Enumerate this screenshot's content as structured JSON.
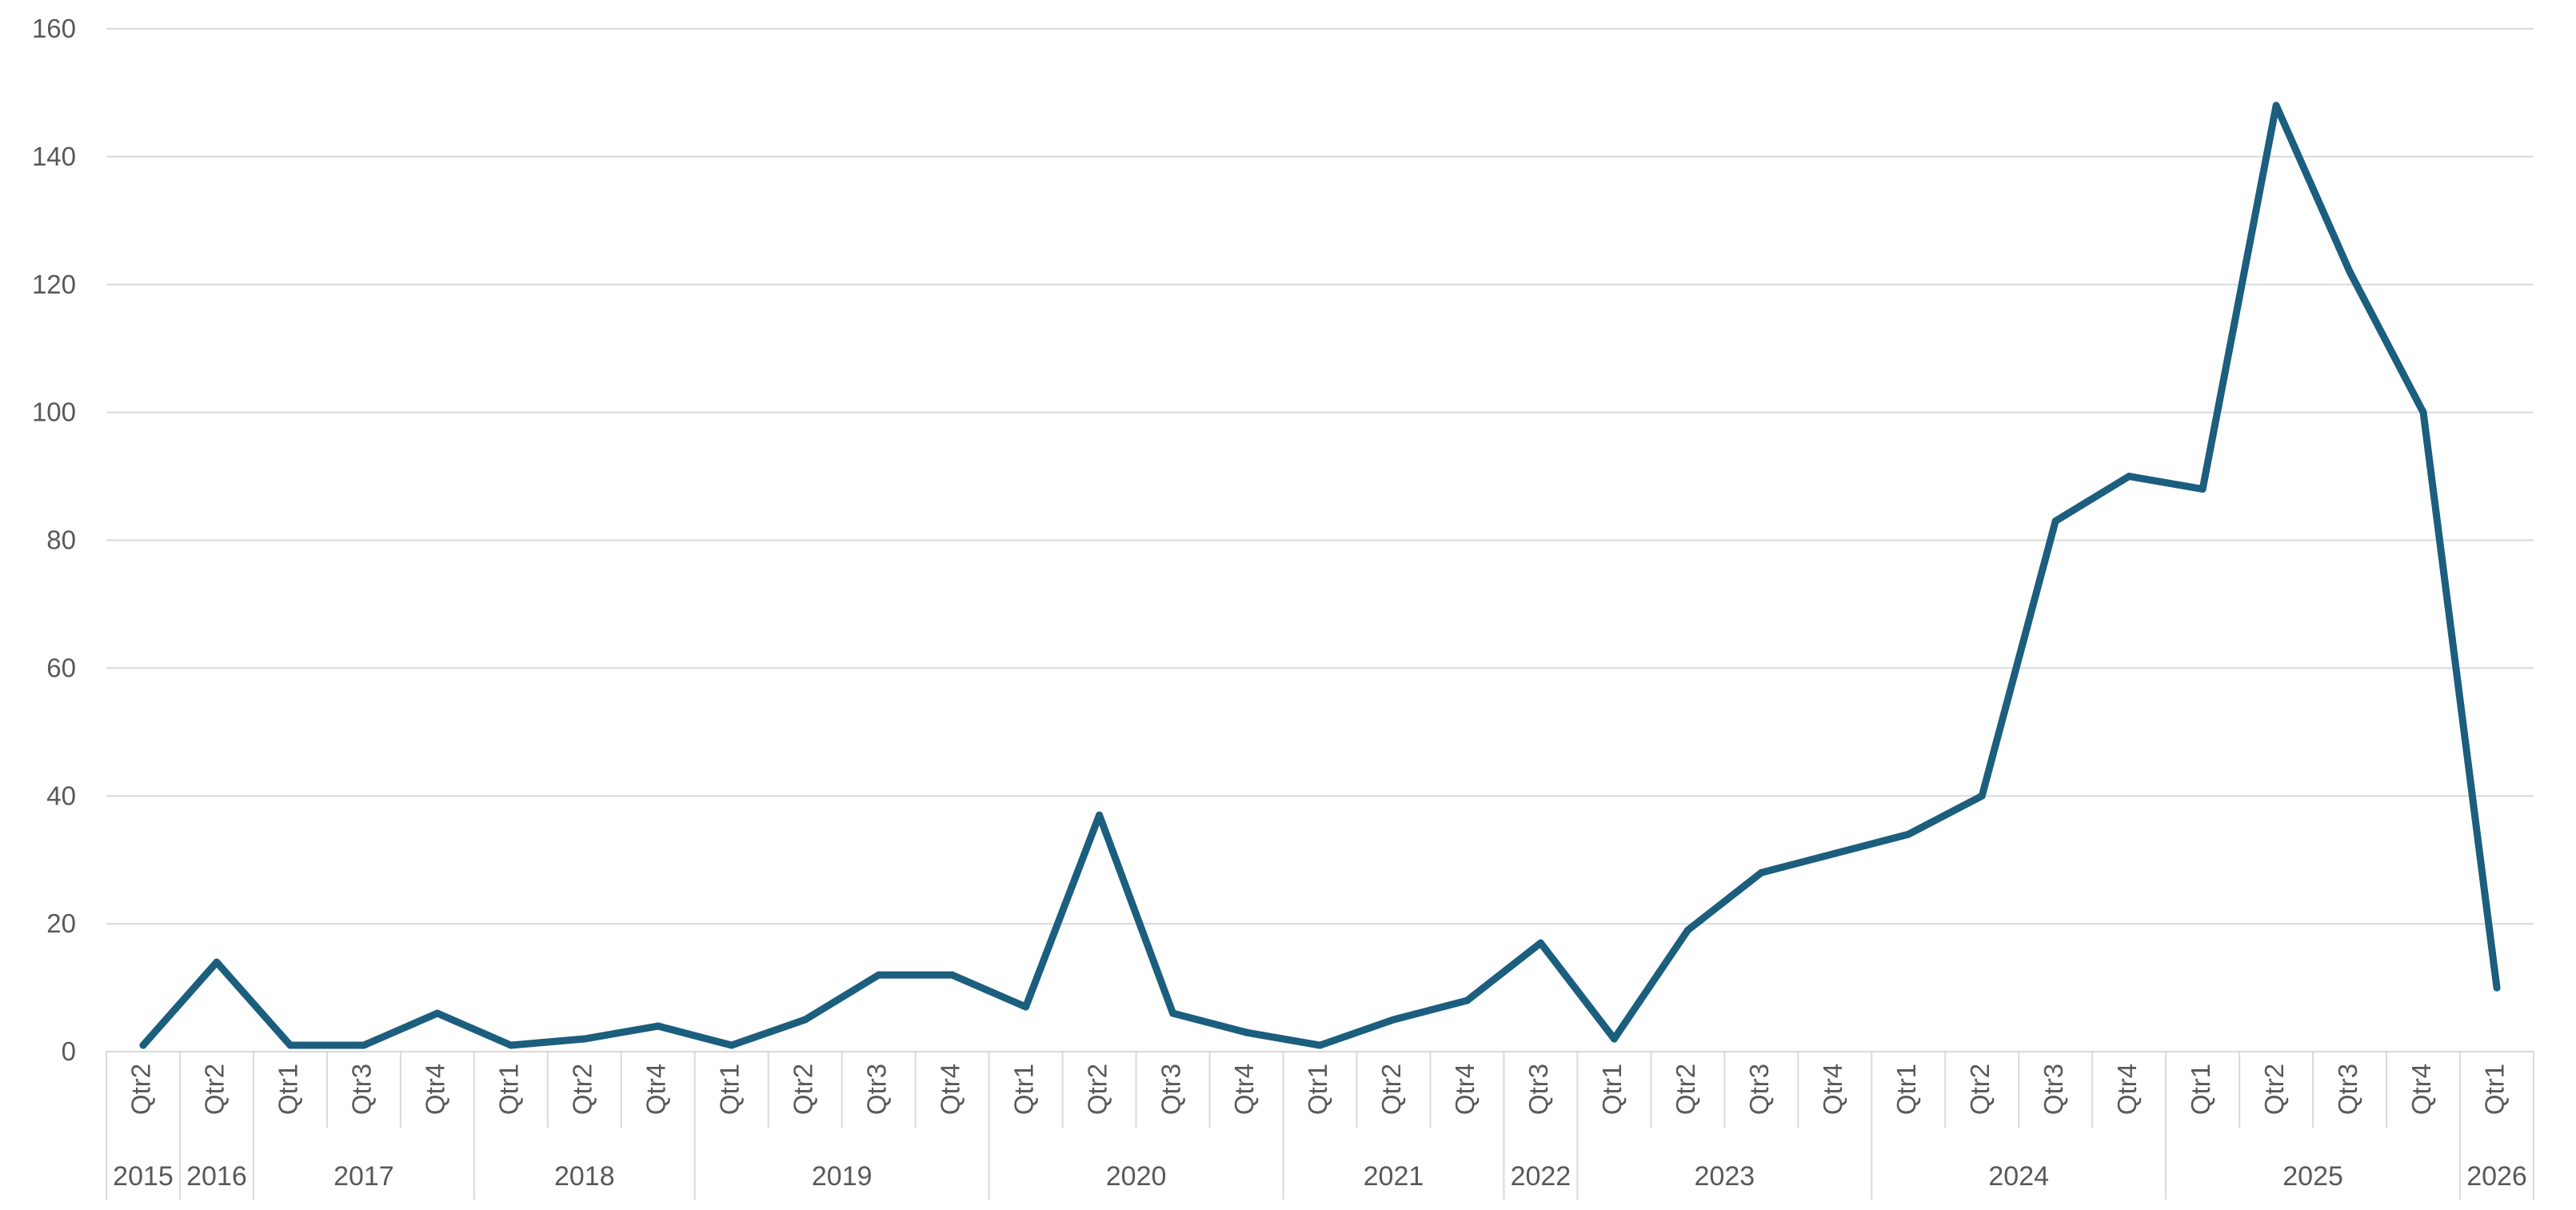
{
  "chart_data": {
    "type": "line",
    "title": "",
    "xlabel": "",
    "ylabel": "",
    "ylim": [
      0,
      160
    ],
    "yticks": [
      0,
      20,
      40,
      60,
      80,
      100,
      120,
      140,
      160
    ],
    "grid": true,
    "legend": "none",
    "colors": {
      "line": "#1B5E7E",
      "grid": "#D9D9D9",
      "text": "#595959",
      "axis": "#D9D9D9"
    },
    "categories": [
      {
        "year": "2015",
        "quarter": "Qtr2"
      },
      {
        "year": "2016",
        "quarter": "Qtr2"
      },
      {
        "year": "2017",
        "quarter": "Qtr1"
      },
      {
        "year": "2017",
        "quarter": "Qtr3"
      },
      {
        "year": "2017",
        "quarter": "Qtr4"
      },
      {
        "year": "2018",
        "quarter": "Qtr1"
      },
      {
        "year": "2018",
        "quarter": "Qtr2"
      },
      {
        "year": "2018",
        "quarter": "Qtr4"
      },
      {
        "year": "2019",
        "quarter": "Qtr1"
      },
      {
        "year": "2019",
        "quarter": "Qtr2"
      },
      {
        "year": "2019",
        "quarter": "Qtr3"
      },
      {
        "year": "2019",
        "quarter": "Qtr4"
      },
      {
        "year": "2020",
        "quarter": "Qtr1"
      },
      {
        "year": "2020",
        "quarter": "Qtr2"
      },
      {
        "year": "2020",
        "quarter": "Qtr3"
      },
      {
        "year": "2020",
        "quarter": "Qtr4"
      },
      {
        "year": "2021",
        "quarter": "Qtr1"
      },
      {
        "year": "2021",
        "quarter": "Qtr2"
      },
      {
        "year": "2021",
        "quarter": "Qtr4"
      },
      {
        "year": "2022",
        "quarter": "Qtr3"
      },
      {
        "year": "2023",
        "quarter": "Qtr1"
      },
      {
        "year": "2023",
        "quarter": "Qtr2"
      },
      {
        "year": "2023",
        "quarter": "Qtr3"
      },
      {
        "year": "2023",
        "quarter": "Qtr4"
      },
      {
        "year": "2024",
        "quarter": "Qtr1"
      },
      {
        "year": "2024",
        "quarter": "Qtr2"
      },
      {
        "year": "2024",
        "quarter": "Qtr3"
      },
      {
        "year": "2024",
        "quarter": "Qtr4"
      },
      {
        "year": "2025",
        "quarter": "Qtr1"
      },
      {
        "year": "2025",
        "quarter": "Qtr2"
      },
      {
        "year": "2025",
        "quarter": "Qtr3"
      },
      {
        "year": "2025",
        "quarter": "Qtr4"
      },
      {
        "year": "2026",
        "quarter": "Qtr1"
      }
    ],
    "series": [
      {
        "values": [
          1,
          14,
          1,
          1,
          6,
          1,
          2,
          4,
          1,
          5,
          12,
          12,
          7,
          37,
          6,
          3,
          1,
          5,
          8,
          17,
          2,
          19,
          28,
          31,
          34,
          40,
          83,
          90,
          88,
          148,
          122,
          100,
          10
        ]
      }
    ]
  }
}
